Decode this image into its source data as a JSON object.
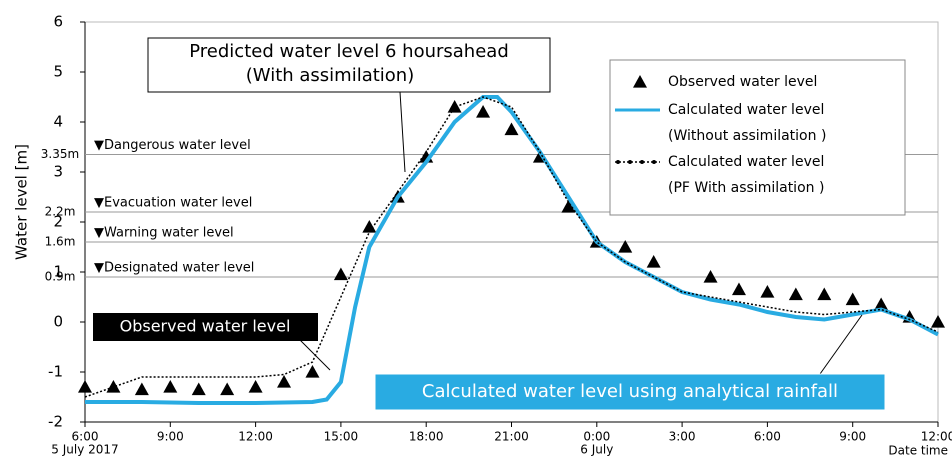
{
  "chart_data": {
    "type": "line",
    "y_label": "Water level [m]",
    "x_sublabels": [
      {
        "value": 0,
        "label": "5 July 2017"
      },
      {
        "value": 18,
        "label": "6 July"
      }
    ],
    "x_end_label": "Date time",
    "xlim": [
      0,
      30
    ],
    "xticks": [
      {
        "value": 0,
        "label": "6:00"
      },
      {
        "value": 3,
        "label": "9:00"
      },
      {
        "value": 6,
        "label": "12:00"
      },
      {
        "value": 9,
        "label": "15:00"
      },
      {
        "value": 12,
        "label": "18:00"
      },
      {
        "value": 15,
        "label": "21:00"
      },
      {
        "value": 18,
        "label": "0:00"
      },
      {
        "value": 21,
        "label": "3:00"
      },
      {
        "value": 24,
        "label": "6:00"
      },
      {
        "value": 27,
        "label": "9:00"
      },
      {
        "value": 30,
        "label": "12:00"
      }
    ],
    "ylim": [
      -2,
      6
    ],
    "yticks": [
      -2,
      -1,
      0,
      1,
      2,
      3,
      4,
      5,
      6
    ],
    "thresholds": [
      {
        "value": 3.35,
        "label": "3.35m",
        "name": "▼Dangerous water level"
      },
      {
        "value": 2.2,
        "label": "2.2m",
        "name": "▼Evacuation water level"
      },
      {
        "value": 1.6,
        "label": "1.6m",
        "name": "▼Warning water level"
      },
      {
        "value": 0.9,
        "label": "0.9m",
        "name": "▼Designated water level"
      }
    ],
    "annotations": [
      "Predicted water level 6 hoursahead",
      "(With assimilation)",
      "Observed water level",
      "Calculated water level using analytical rainfall"
    ],
    "series": [
      {
        "name": "Observed water level",
        "color": "#000000",
        "marker": "triangle",
        "x": [
          0,
          1,
          2,
          3,
          4,
          5,
          6,
          7,
          8,
          9,
          10,
          11,
          12,
          13,
          14,
          15,
          16,
          17,
          18,
          19,
          20,
          21,
          22,
          23,
          24,
          25,
          26,
          27,
          28,
          29,
          30
        ],
        "values": [
          -1.3,
          -1.3,
          -1.35,
          -1.3,
          -1.35,
          -1.35,
          -1.3,
          -1.2,
          -1.0,
          0.95,
          1.9,
          2.5,
          3.3,
          4.3,
          4.2,
          3.85,
          3.3,
          2.3,
          1.6,
          1.5,
          1.2,
          null,
          0.9,
          0.65,
          0.6,
          0.55,
          0.55,
          0.45,
          0.35,
          0.1,
          0.0
        ]
      },
      {
        "name": "Calculated water level",
        "note": "(Without assimilation )",
        "color": "#29abe2",
        "marker": "line",
        "x": [
          0,
          2,
          4,
          6,
          8,
          8.5,
          9,
          9.5,
          10,
          11,
          12,
          13,
          14,
          14.5,
          15,
          16,
          17,
          18,
          19,
          20,
          21,
          22,
          23,
          24,
          25,
          26,
          27,
          28,
          29,
          30
        ],
        "values": [
          -1.6,
          -1.6,
          -1.62,
          -1.62,
          -1.6,
          -1.55,
          -1.2,
          0.3,
          1.5,
          2.5,
          3.2,
          4.0,
          4.5,
          4.5,
          4.2,
          3.4,
          2.5,
          1.6,
          1.2,
          0.9,
          0.6,
          0.45,
          0.35,
          0.2,
          0.1,
          0.05,
          0.15,
          0.25,
          0.05,
          -0.25
        ]
      },
      {
        "name": "Calculated water level",
        "note": "(PF With assimilation )",
        "color": "#000000",
        "marker": "dots",
        "x": [
          0,
          1,
          2,
          3,
          4,
          5,
          6,
          7,
          8,
          9,
          10,
          11,
          12,
          13,
          14,
          15,
          16,
          17,
          18,
          19,
          20,
          21,
          22,
          23,
          24,
          25,
          26,
          27,
          28,
          29,
          30
        ],
        "values": [
          -1.5,
          -1.3,
          -1.1,
          -1.1,
          -1.1,
          -1.1,
          -1.1,
          -1.05,
          -0.8,
          0.5,
          1.8,
          2.6,
          3.4,
          4.3,
          4.5,
          4.3,
          3.4,
          2.4,
          1.6,
          1.2,
          0.9,
          0.6,
          0.5,
          0.4,
          0.3,
          0.2,
          0.15,
          0.2,
          0.25,
          0.05,
          -0.2
        ]
      }
    ]
  }
}
